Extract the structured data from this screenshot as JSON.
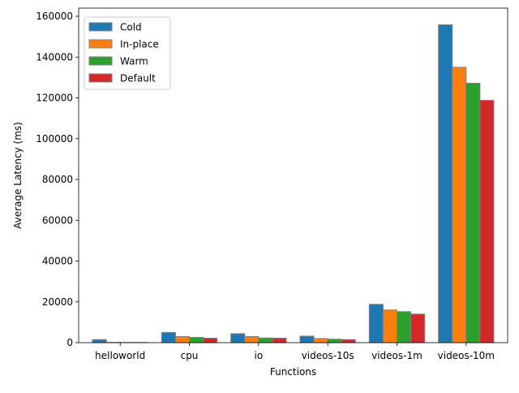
{
  "chart_data": {
    "type": "bar",
    "title": "",
    "xlabel": "Functions",
    "ylabel": "Average Latency (ms)",
    "categories": [
      "helloworld",
      "cpu",
      "io",
      "videos-10s",
      "videos-1m",
      "videos-10m"
    ],
    "series": [
      {
        "name": "Cold",
        "color": "#1f77b4",
        "values": [
          1500,
          5000,
          4400,
          3200,
          18800,
          155800
        ]
      },
      {
        "name": "In-place",
        "color": "#ff7f0e",
        "values": [
          150,
          3000,
          3000,
          2000,
          16000,
          135000
        ]
      },
      {
        "name": "Warm",
        "color": "#2ca02c",
        "values": [
          100,
          2600,
          2300,
          1700,
          15200,
          127200
        ]
      },
      {
        "name": "Default",
        "color": "#d62728",
        "values": [
          100,
          2200,
          2200,
          1500,
          14000,
          118800
        ]
      }
    ],
    "ylim": [
      0,
      164000
    ],
    "yticks": [
      0,
      20000,
      40000,
      60000,
      80000,
      100000,
      120000,
      140000,
      160000
    ],
    "ytick_labels": [
      "0",
      "20000",
      "40000",
      "60000",
      "80000",
      "100000",
      "120000",
      "140000",
      "160000"
    ],
    "grid": false,
    "legend_position": "top-left",
    "bar_edge_color": "#808080"
  }
}
